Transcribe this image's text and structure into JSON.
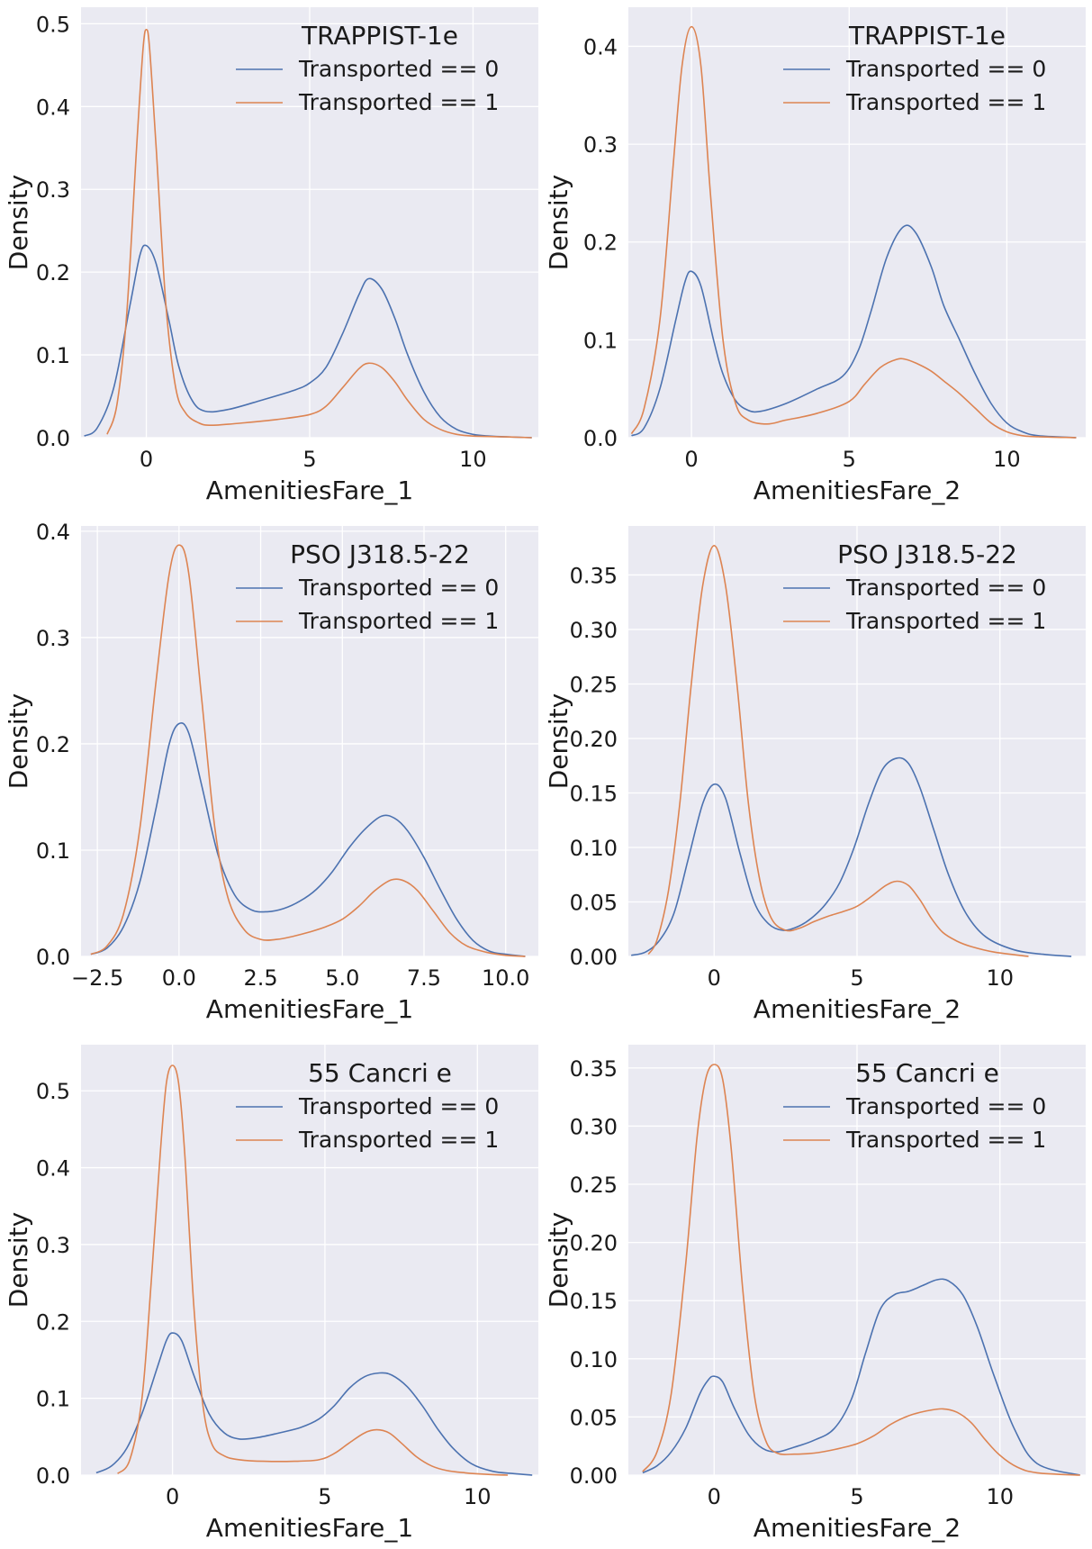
{
  "chart_data": [
    {
      "type": "line",
      "legend_title": "TRAPPIST-1e",
      "xlabel": "AmenitiesFare_1",
      "ylabel": "Density",
      "xlim": [
        -2.0,
        12.0
      ],
      "ylim": [
        0.0,
        0.52
      ],
      "xticks": [
        0,
        5,
        10
      ],
      "xtick_labels": [
        "0",
        "5",
        "10"
      ],
      "yticks": [
        0.0,
        0.1,
        0.2,
        0.3,
        0.4,
        0.5
      ],
      "ytick_labels": [
        "0.0",
        "0.1",
        "0.2",
        "0.3",
        "0.4",
        "0.5"
      ],
      "grid": true,
      "legend_position": "top-right",
      "series": [
        {
          "name": "Transported == 0",
          "color": "#4c72b0",
          "x": [
            -1.9,
            -1.5,
            -1.0,
            -0.5,
            -0.2,
            0.0,
            0.3,
            0.7,
            1.0,
            1.4,
            1.8,
            2.5,
            3.5,
            4.5,
            5.0,
            5.5,
            6.0,
            6.5,
            6.8,
            7.2,
            7.6,
            8.0,
            8.5,
            9.0,
            9.5,
            10.0,
            10.5,
            11.0,
            11.8
          ],
          "y": [
            0.002,
            0.012,
            0.06,
            0.16,
            0.22,
            0.232,
            0.21,
            0.14,
            0.085,
            0.045,
            0.032,
            0.034,
            0.045,
            0.057,
            0.066,
            0.085,
            0.125,
            0.172,
            0.192,
            0.18,
            0.145,
            0.1,
            0.055,
            0.025,
            0.01,
            0.004,
            0.002,
            0.001,
            0.0
          ]
        },
        {
          "name": "Transported == 1",
          "color": "#dd8452",
          "x": [
            -1.2,
            -0.9,
            -0.6,
            -0.3,
            -0.1,
            0.0,
            0.1,
            0.3,
            0.6,
            0.9,
            1.2,
            1.6,
            2.0,
            3.0,
            4.0,
            5.0,
            5.5,
            6.0,
            6.5,
            6.8,
            7.2,
            7.6,
            8.0,
            8.5,
            9.0,
            9.5,
            10.0,
            11.0,
            11.8
          ],
          "y": [
            0.004,
            0.04,
            0.15,
            0.35,
            0.47,
            0.493,
            0.47,
            0.35,
            0.16,
            0.06,
            0.03,
            0.018,
            0.015,
            0.018,
            0.022,
            0.028,
            0.038,
            0.06,
            0.083,
            0.09,
            0.085,
            0.068,
            0.045,
            0.022,
            0.01,
            0.004,
            0.002,
            0.001,
            0.0
          ]
        }
      ]
    },
    {
      "type": "line",
      "legend_title": "TRAPPIST-1e",
      "xlabel": "AmenitiesFare_2",
      "ylabel": "Density",
      "xlim": [
        -2.0,
        12.5
      ],
      "ylim": [
        0.0,
        0.44
      ],
      "xticks": [
        0,
        5,
        10
      ],
      "xtick_labels": [
        "0",
        "5",
        "10"
      ],
      "yticks": [
        0.0,
        0.1,
        0.2,
        0.3,
        0.4
      ],
      "ytick_labels": [
        "0.0",
        "0.1",
        "0.2",
        "0.3",
        "0.4"
      ],
      "grid": true,
      "legend_position": "top-right",
      "series": [
        {
          "name": "Transported == 0",
          "color": "#4c72b0",
          "x": [
            -1.9,
            -1.5,
            -1.0,
            -0.5,
            -0.2,
            0.0,
            0.3,
            0.7,
            1.0,
            1.4,
            1.8,
            2.2,
            3.0,
            4.0,
            4.8,
            5.3,
            5.7,
            6.2,
            6.7,
            7.1,
            7.6,
            8.0,
            8.5,
            9.0,
            9.5,
            10.0,
            10.5,
            11.0,
            12.2
          ],
          "y": [
            0.002,
            0.01,
            0.05,
            0.12,
            0.16,
            0.17,
            0.155,
            0.1,
            0.065,
            0.038,
            0.028,
            0.027,
            0.035,
            0.05,
            0.063,
            0.09,
            0.13,
            0.185,
            0.215,
            0.21,
            0.175,
            0.135,
            0.1,
            0.065,
            0.035,
            0.015,
            0.006,
            0.002,
            0.0
          ]
        },
        {
          "name": "Transported == 1",
          "color": "#dd8452",
          "x": [
            -1.9,
            -1.5,
            -1.0,
            -0.6,
            -0.3,
            0.0,
            0.3,
            0.6,
            1.0,
            1.4,
            1.8,
            2.4,
            3.0,
            4.0,
            5.0,
            5.5,
            6.0,
            6.5,
            6.8,
            7.2,
            7.6,
            8.0,
            8.5,
            9.0,
            9.5,
            10.0,
            10.5,
            11.0,
            12.2
          ],
          "y": [
            0.004,
            0.03,
            0.12,
            0.27,
            0.38,
            0.42,
            0.38,
            0.25,
            0.1,
            0.035,
            0.018,
            0.014,
            0.018,
            0.025,
            0.037,
            0.055,
            0.072,
            0.08,
            0.08,
            0.075,
            0.068,
            0.058,
            0.045,
            0.03,
            0.015,
            0.006,
            0.002,
            0.001,
            0.0
          ]
        }
      ]
    },
    {
      "type": "line",
      "legend_title": "PSO J318.5-22",
      "xlabel": "AmenitiesFare_1",
      "ylabel": "Density",
      "xlim": [
        -3.0,
        11.0
      ],
      "ylim": [
        0.0,
        0.405
      ],
      "xticks": [
        -2.5,
        0.0,
        2.5,
        5.0,
        7.5,
        10.0
      ],
      "xtick_labels": [
        "−2.5",
        "0.0",
        "2.5",
        "5.0",
        "7.5",
        "10.0"
      ],
      "yticks": [
        0.0,
        0.1,
        0.2,
        0.3,
        0.4
      ],
      "ytick_labels": [
        "0.0",
        "0.1",
        "0.2",
        "0.3",
        "0.4"
      ],
      "grid": true,
      "legend_position": "top-right",
      "series": [
        {
          "name": "Transported == 0",
          "color": "#4c72b0",
          "x": [
            -2.7,
            -2.2,
            -1.7,
            -1.2,
            -0.7,
            -0.3,
            0.0,
            0.3,
            0.7,
            1.2,
            1.7,
            2.2,
            2.7,
            3.2,
            3.7,
            4.2,
            4.7,
            5.2,
            5.7,
            6.2,
            6.6,
            7.0,
            7.5,
            8.0,
            8.5,
            9.0,
            9.5,
            10.0,
            10.6
          ],
          "y": [
            0.002,
            0.008,
            0.028,
            0.07,
            0.14,
            0.2,
            0.219,
            0.21,
            0.16,
            0.095,
            0.058,
            0.044,
            0.042,
            0.045,
            0.052,
            0.063,
            0.08,
            0.102,
            0.12,
            0.132,
            0.13,
            0.118,
            0.093,
            0.063,
            0.035,
            0.015,
            0.005,
            0.002,
            0.0
          ]
        },
        {
          "name": "Transported == 1",
          "color": "#dd8452",
          "x": [
            -2.7,
            -2.2,
            -1.7,
            -1.2,
            -0.7,
            -0.3,
            0.0,
            0.3,
            0.7,
            1.1,
            1.5,
            2.0,
            2.5,
            3.0,
            3.5,
            4.0,
            4.5,
            5.0,
            5.5,
            6.0,
            6.5,
            6.9,
            7.3,
            7.8,
            8.3,
            8.8,
            9.4,
            10.0,
            10.6
          ],
          "y": [
            0.002,
            0.01,
            0.04,
            0.12,
            0.26,
            0.36,
            0.387,
            0.36,
            0.24,
            0.12,
            0.055,
            0.025,
            0.016,
            0.016,
            0.019,
            0.023,
            0.028,
            0.035,
            0.047,
            0.062,
            0.072,
            0.071,
            0.062,
            0.042,
            0.022,
            0.01,
            0.004,
            0.001,
            0.0
          ]
        }
      ]
    },
    {
      "type": "line",
      "legend_title": "PSO J318.5-22",
      "xlabel": "AmenitiesFare_2",
      "ylabel": "Density",
      "xlim": [
        -3.0,
        13.0
      ],
      "ylim": [
        0.0,
        0.395
      ],
      "xticks": [
        0,
        5,
        10
      ],
      "xtick_labels": [
        "0",
        "5",
        "10"
      ],
      "yticks": [
        0.0,
        0.05,
        0.1,
        0.15,
        0.2,
        0.25,
        0.3,
        0.35
      ],
      "ytick_labels": [
        "0.00",
        "0.05",
        "0.10",
        "0.15",
        "0.20",
        "0.25",
        "0.30",
        "0.35"
      ],
      "grid": true,
      "legend_position": "top-right",
      "series": [
        {
          "name": "Transported == 0",
          "color": "#4c72b0",
          "x": [
            -2.9,
            -2.4,
            -1.9,
            -1.4,
            -0.9,
            -0.4,
            0.0,
            0.4,
            0.9,
            1.4,
            1.9,
            2.4,
            2.9,
            3.4,
            3.9,
            4.4,
            4.9,
            5.4,
            5.9,
            6.4,
            6.8,
            7.2,
            7.7,
            8.2,
            8.8,
            9.5,
            10.5,
            11.5,
            12.5
          ],
          "y": [
            0.001,
            0.004,
            0.015,
            0.04,
            0.09,
            0.14,
            0.158,
            0.145,
            0.095,
            0.05,
            0.03,
            0.024,
            0.027,
            0.035,
            0.048,
            0.068,
            0.1,
            0.14,
            0.172,
            0.182,
            0.177,
            0.155,
            0.115,
            0.075,
            0.04,
            0.018,
            0.006,
            0.002,
            0.0
          ]
        },
        {
          "name": "Transported == 1",
          "color": "#dd8452",
          "x": [
            -2.3,
            -2.0,
            -1.6,
            -1.2,
            -0.8,
            -0.4,
            0.0,
            0.4,
            0.8,
            1.2,
            1.6,
            2.0,
            2.5,
            3.0,
            3.5,
            4.0,
            4.5,
            5.0,
            5.5,
            6.0,
            6.4,
            6.8,
            7.2,
            7.6,
            8.0,
            8.5,
            9.0,
            9.8,
            11.0
          ],
          "y": [
            0.002,
            0.015,
            0.06,
            0.14,
            0.25,
            0.34,
            0.377,
            0.34,
            0.25,
            0.14,
            0.07,
            0.035,
            0.024,
            0.026,
            0.032,
            0.037,
            0.041,
            0.046,
            0.055,
            0.065,
            0.069,
            0.065,
            0.052,
            0.035,
            0.022,
            0.014,
            0.009,
            0.004,
            0.0
          ]
        }
      ]
    },
    {
      "type": "line",
      "legend_title": "55 Cancri e",
      "xlabel": "AmenitiesFare_1",
      "ylabel": "Density",
      "xlim": [
        -3.0,
        12.0
      ],
      "ylim": [
        0.0,
        0.56
      ],
      "xticks": [
        0,
        5,
        10
      ],
      "xtick_labels": [
        "0",
        "5",
        "10"
      ],
      "yticks": [
        0.0,
        0.1,
        0.2,
        0.3,
        0.4,
        0.5
      ],
      "ytick_labels": [
        "0.0",
        "0.1",
        "0.2",
        "0.3",
        "0.4",
        "0.5"
      ],
      "grid": true,
      "legend_position": "top-right",
      "series": [
        {
          "name": "Transported == 0",
          "color": "#4c72b0",
          "x": [
            -2.5,
            -2.0,
            -1.5,
            -1.0,
            -0.5,
            -0.2,
            0.0,
            0.3,
            0.7,
            1.2,
            1.7,
            2.2,
            2.8,
            3.5,
            4.2,
            4.8,
            5.3,
            5.8,
            6.3,
            6.8,
            7.2,
            7.7,
            8.2,
            8.7,
            9.2,
            9.8,
            10.5,
            11.2,
            11.8
          ],
          "y": [
            0.003,
            0.012,
            0.035,
            0.08,
            0.14,
            0.175,
            0.185,
            0.175,
            0.13,
            0.08,
            0.055,
            0.047,
            0.049,
            0.055,
            0.062,
            0.073,
            0.09,
            0.113,
            0.128,
            0.133,
            0.13,
            0.115,
            0.09,
            0.06,
            0.035,
            0.015,
            0.005,
            0.002,
            0.0
          ]
        },
        {
          "name": "Transported == 1",
          "color": "#dd8452",
          "x": [
            -1.8,
            -1.4,
            -1.0,
            -0.7,
            -0.4,
            -0.2,
            0.0,
            0.2,
            0.4,
            0.7,
            1.0,
            1.3,
            1.7,
            2.2,
            3.0,
            4.0,
            4.8,
            5.3,
            5.8,
            6.3,
            6.7,
            7.1,
            7.5,
            8.0,
            8.5,
            9.0,
            9.6,
            10.3,
            11.0
          ],
          "y": [
            0.002,
            0.02,
            0.1,
            0.25,
            0.42,
            0.51,
            0.533,
            0.51,
            0.42,
            0.22,
            0.09,
            0.04,
            0.025,
            0.02,
            0.018,
            0.018,
            0.02,
            0.028,
            0.042,
            0.055,
            0.059,
            0.055,
            0.042,
            0.024,
            0.012,
            0.006,
            0.003,
            0.001,
            0.0
          ]
        }
      ]
    },
    {
      "type": "line",
      "legend_title": "55 Cancri e",
      "xlabel": "AmenitiesFare_2",
      "ylabel": "Density",
      "xlim": [
        -3.0,
        13.0
      ],
      "ylim": [
        0.0,
        0.37
      ],
      "xticks": [
        0,
        5,
        10
      ],
      "xtick_labels": [
        "0",
        "5",
        "10"
      ],
      "yticks": [
        0.0,
        0.05,
        0.1,
        0.15,
        0.2,
        0.25,
        0.3,
        0.35
      ],
      "ytick_labels": [
        "0.00",
        "0.05",
        "0.10",
        "0.15",
        "0.20",
        "0.25",
        "0.30",
        "0.35"
      ],
      "grid": true,
      "legend_position": "top-right",
      "series": [
        {
          "name": "Transported == 0",
          "color": "#4c72b0",
          "x": [
            -2.5,
            -2.0,
            -1.5,
            -1.0,
            -0.5,
            -0.2,
            0.0,
            0.3,
            0.7,
            1.2,
            1.7,
            2.2,
            2.8,
            3.5,
            4.2,
            4.8,
            5.3,
            5.8,
            6.3,
            6.8,
            7.3,
            7.8,
            8.2,
            8.7,
            9.2,
            9.8,
            10.5,
            11.3,
            12.8
          ],
          "y": [
            0.002,
            0.008,
            0.02,
            0.04,
            0.07,
            0.082,
            0.085,
            0.08,
            0.058,
            0.035,
            0.023,
            0.02,
            0.024,
            0.03,
            0.04,
            0.065,
            0.105,
            0.142,
            0.155,
            0.158,
            0.163,
            0.168,
            0.167,
            0.155,
            0.128,
            0.085,
            0.04,
            0.01,
            0.0
          ]
        },
        {
          "name": "Transported == 1",
          "color": "#dd8452",
          "x": [
            -2.5,
            -2.0,
            -1.5,
            -1.0,
            -0.6,
            -0.3,
            0.0,
            0.3,
            0.6,
            1.0,
            1.4,
            1.8,
            2.2,
            2.8,
            3.5,
            4.2,
            5.0,
            5.6,
            6.2,
            6.8,
            7.4,
            8.0,
            8.5,
            9.0,
            9.5,
            10.0,
            10.6,
            11.3,
            12.8
          ],
          "y": [
            0.003,
            0.02,
            0.07,
            0.18,
            0.29,
            0.34,
            0.353,
            0.34,
            0.28,
            0.16,
            0.07,
            0.03,
            0.019,
            0.018,
            0.019,
            0.022,
            0.027,
            0.034,
            0.044,
            0.051,
            0.055,
            0.057,
            0.054,
            0.045,
            0.03,
            0.017,
            0.007,
            0.002,
            0.0
          ]
        }
      ]
    }
  ]
}
